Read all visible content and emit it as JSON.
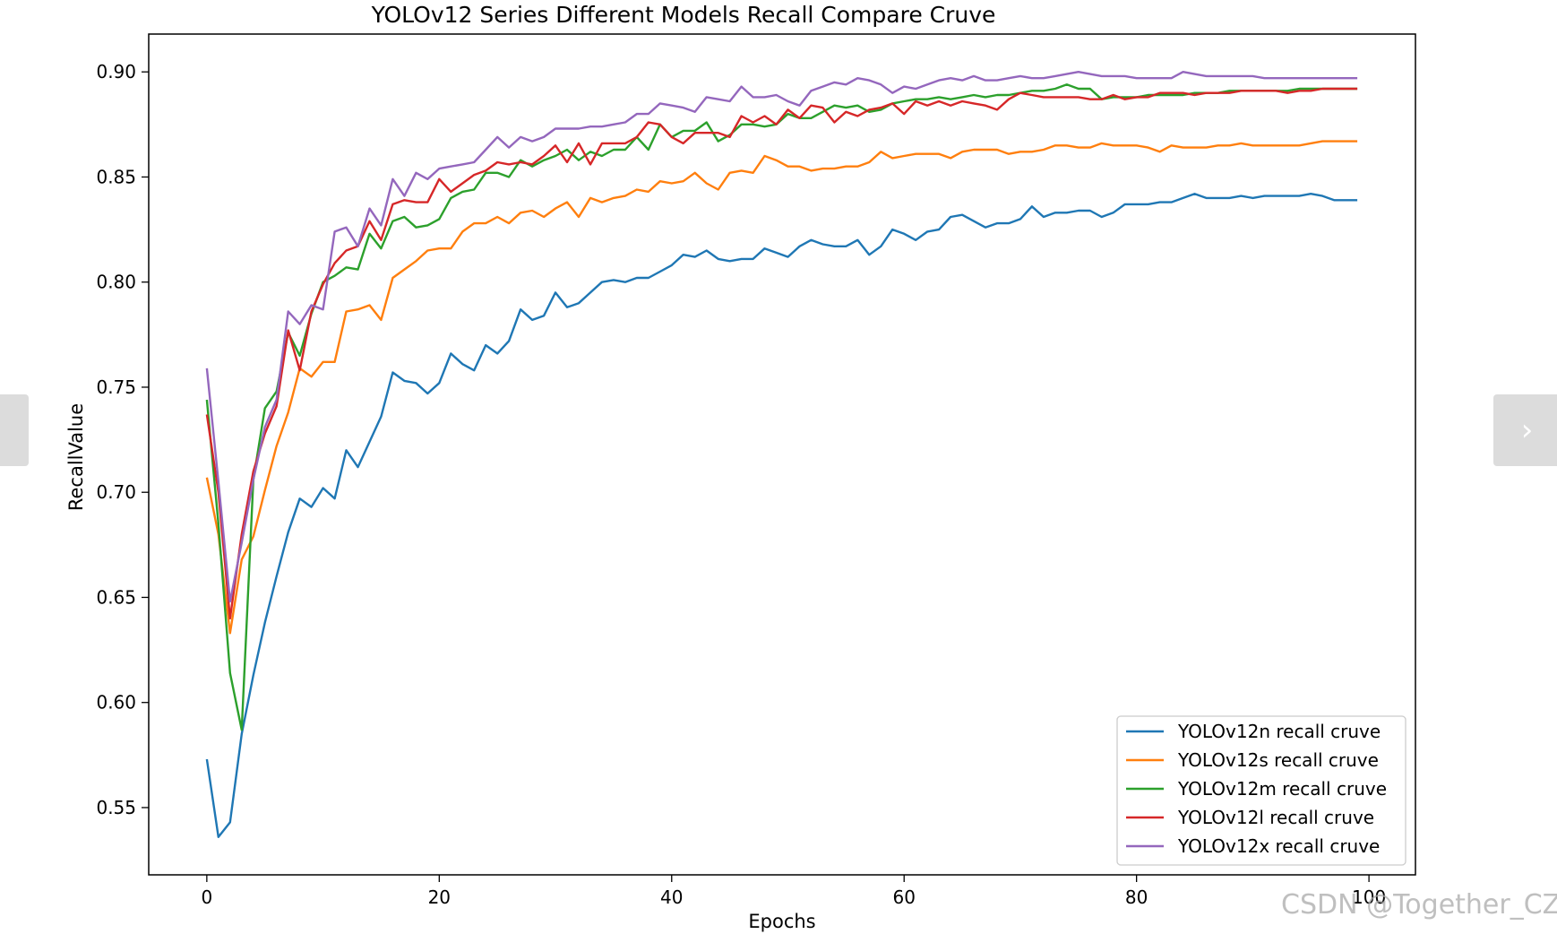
{
  "nav": {
    "prev_icon": "chevron-left-icon",
    "next_icon": "chevron-right-icon",
    "next_glyph": "›"
  },
  "watermark": "CSDN @Together_CZ",
  "chart_data": {
    "type": "line",
    "title": "YOLOv12 Series Different Models Recall Compare Cruve",
    "xlabel": "Epochs",
    "ylabel": "RecallValue",
    "xlim": [
      -5,
      104
    ],
    "ylim": [
      0.518,
      0.918
    ],
    "xticks": [
      0,
      20,
      40,
      60,
      80,
      100
    ],
    "yticks": [
      0.55,
      0.6,
      0.65,
      0.7,
      0.75,
      0.8,
      0.85,
      0.9
    ],
    "grid": false,
    "legend": "lower-right",
    "series": [
      {
        "name": "YOLOv12n recall cruve",
        "color": "#1f77b4",
        "values": [
          0.573,
          0.536,
          0.543,
          0.585,
          0.613,
          0.638,
          0.66,
          0.681,
          0.697,
          0.693,
          0.702,
          0.697,
          0.72,
          0.712,
          0.724,
          0.736,
          0.757,
          0.753,
          0.752,
          0.747,
          0.752,
          0.766,
          0.761,
          0.758,
          0.77,
          0.766,
          0.772,
          0.787,
          0.782,
          0.784,
          0.795,
          0.788,
          0.79,
          0.795,
          0.8,
          0.801,
          0.8,
          0.802,
          0.802,
          0.805,
          0.808,
          0.813,
          0.812,
          0.815,
          0.811,
          0.81,
          0.811,
          0.811,
          0.816,
          0.814,
          0.812,
          0.817,
          0.82,
          0.818,
          0.817,
          0.817,
          0.82,
          0.813,
          0.817,
          0.825,
          0.823,
          0.82,
          0.824,
          0.825,
          0.831,
          0.832,
          0.829,
          0.826,
          0.828,
          0.828,
          0.83,
          0.836,
          0.831,
          0.833,
          0.833,
          0.834,
          0.834,
          0.831,
          0.833,
          0.837,
          0.837,
          0.837,
          0.838,
          0.838,
          0.84,
          0.842,
          0.84,
          0.84,
          0.84,
          0.841,
          0.84,
          0.841,
          0.841,
          0.841,
          0.841,
          0.842,
          0.841,
          0.839,
          0.839,
          0.839
        ]
      },
      {
        "name": "YOLOv12s recall cruve",
        "color": "#ff7f0e",
        "values": [
          0.707,
          0.68,
          0.633,
          0.668,
          0.679,
          0.701,
          0.722,
          0.738,
          0.759,
          0.755,
          0.762,
          0.762,
          0.786,
          0.787,
          0.789,
          0.782,
          0.802,
          0.806,
          0.81,
          0.815,
          0.816,
          0.816,
          0.824,
          0.828,
          0.828,
          0.831,
          0.828,
          0.833,
          0.834,
          0.831,
          0.835,
          0.838,
          0.831,
          0.84,
          0.838,
          0.84,
          0.841,
          0.844,
          0.843,
          0.848,
          0.847,
          0.848,
          0.852,
          0.847,
          0.844,
          0.852,
          0.853,
          0.852,
          0.86,
          0.858,
          0.855,
          0.855,
          0.853,
          0.854,
          0.854,
          0.855,
          0.855,
          0.857,
          0.862,
          0.859,
          0.86,
          0.861,
          0.861,
          0.861,
          0.859,
          0.862,
          0.863,
          0.863,
          0.863,
          0.861,
          0.862,
          0.862,
          0.863,
          0.865,
          0.865,
          0.864,
          0.864,
          0.866,
          0.865,
          0.865,
          0.865,
          0.864,
          0.862,
          0.865,
          0.864,
          0.864,
          0.864,
          0.865,
          0.865,
          0.866,
          0.865,
          0.865,
          0.865,
          0.865,
          0.865,
          0.866,
          0.867,
          0.867,
          0.867,
          0.867
        ]
      },
      {
        "name": "YOLOv12m recall cruve",
        "color": "#2ca02c",
        "values": [
          0.744,
          0.685,
          0.614,
          0.587,
          0.706,
          0.74,
          0.748,
          0.776,
          0.765,
          0.785,
          0.8,
          0.803,
          0.807,
          0.806,
          0.823,
          0.816,
          0.829,
          0.831,
          0.826,
          0.827,
          0.83,
          0.84,
          0.843,
          0.844,
          0.852,
          0.852,
          0.85,
          0.858,
          0.855,
          0.858,
          0.86,
          0.863,
          0.858,
          0.862,
          0.86,
          0.863,
          0.863,
          0.869,
          0.863,
          0.875,
          0.869,
          0.872,
          0.872,
          0.876,
          0.867,
          0.87,
          0.875,
          0.875,
          0.874,
          0.875,
          0.88,
          0.878,
          0.878,
          0.881,
          0.884,
          0.883,
          0.884,
          0.881,
          0.882,
          0.885,
          0.886,
          0.887,
          0.887,
          0.888,
          0.887,
          0.888,
          0.889,
          0.888,
          0.889,
          0.889,
          0.89,
          0.891,
          0.891,
          0.892,
          0.894,
          0.892,
          0.892,
          0.887,
          0.888,
          0.888,
          0.888,
          0.889,
          0.889,
          0.889,
          0.889,
          0.89,
          0.89,
          0.89,
          0.891,
          0.891,
          0.891,
          0.891,
          0.891,
          0.891,
          0.892,
          0.892,
          0.892,
          0.892,
          0.892,
          0.892
        ]
      },
      {
        "name": "YOLOv12l recall cruve",
        "color": "#d62728",
        "values": [
          0.737,
          0.7,
          0.64,
          0.68,
          0.71,
          0.728,
          0.741,
          0.777,
          0.758,
          0.786,
          0.799,
          0.809,
          0.815,
          0.817,
          0.829,
          0.82,
          0.837,
          0.839,
          0.838,
          0.838,
          0.849,
          0.843,
          0.847,
          0.851,
          0.853,
          0.857,
          0.856,
          0.857,
          0.856,
          0.86,
          0.865,
          0.857,
          0.866,
          0.856,
          0.866,
          0.866,
          0.866,
          0.869,
          0.876,
          0.875,
          0.869,
          0.866,
          0.871,
          0.871,
          0.871,
          0.869,
          0.879,
          0.876,
          0.879,
          0.875,
          0.882,
          0.878,
          0.884,
          0.883,
          0.876,
          0.881,
          0.879,
          0.882,
          0.883,
          0.885,
          0.88,
          0.886,
          0.884,
          0.886,
          0.884,
          0.886,
          0.885,
          0.884,
          0.882,
          0.887,
          0.89,
          0.889,
          0.888,
          0.888,
          0.888,
          0.888,
          0.887,
          0.887,
          0.889,
          0.887,
          0.888,
          0.888,
          0.89,
          0.89,
          0.89,
          0.889,
          0.89,
          0.89,
          0.89,
          0.891,
          0.891,
          0.891,
          0.891,
          0.89,
          0.891,
          0.891,
          0.892,
          0.892,
          0.892,
          0.892
        ]
      },
      {
        "name": "YOLOv12x recall cruve",
        "color": "#9467bd",
        "values": [
          0.759,
          0.705,
          0.648,
          0.676,
          0.706,
          0.731,
          0.744,
          0.786,
          0.78,
          0.789,
          0.787,
          0.824,
          0.826,
          0.817,
          0.835,
          0.827,
          0.849,
          0.841,
          0.852,
          0.849,
          0.854,
          0.855,
          0.856,
          0.857,
          0.863,
          0.869,
          0.864,
          0.869,
          0.867,
          0.869,
          0.873,
          0.873,
          0.873,
          0.874,
          0.874,
          0.875,
          0.876,
          0.88,
          0.88,
          0.885,
          0.884,
          0.883,
          0.881,
          0.888,
          0.887,
          0.886,
          0.893,
          0.888,
          0.888,
          0.889,
          0.886,
          0.884,
          0.891,
          0.893,
          0.895,
          0.894,
          0.897,
          0.896,
          0.894,
          0.89,
          0.893,
          0.892,
          0.894,
          0.896,
          0.897,
          0.896,
          0.898,
          0.896,
          0.896,
          0.897,
          0.898,
          0.897,
          0.897,
          0.898,
          0.899,
          0.9,
          0.899,
          0.898,
          0.898,
          0.898,
          0.897,
          0.897,
          0.897,
          0.897,
          0.9,
          0.899,
          0.898,
          0.898,
          0.898,
          0.898,
          0.898,
          0.897,
          0.897,
          0.897,
          0.897,
          0.897,
          0.897,
          0.897,
          0.897,
          0.897
        ]
      }
    ]
  }
}
